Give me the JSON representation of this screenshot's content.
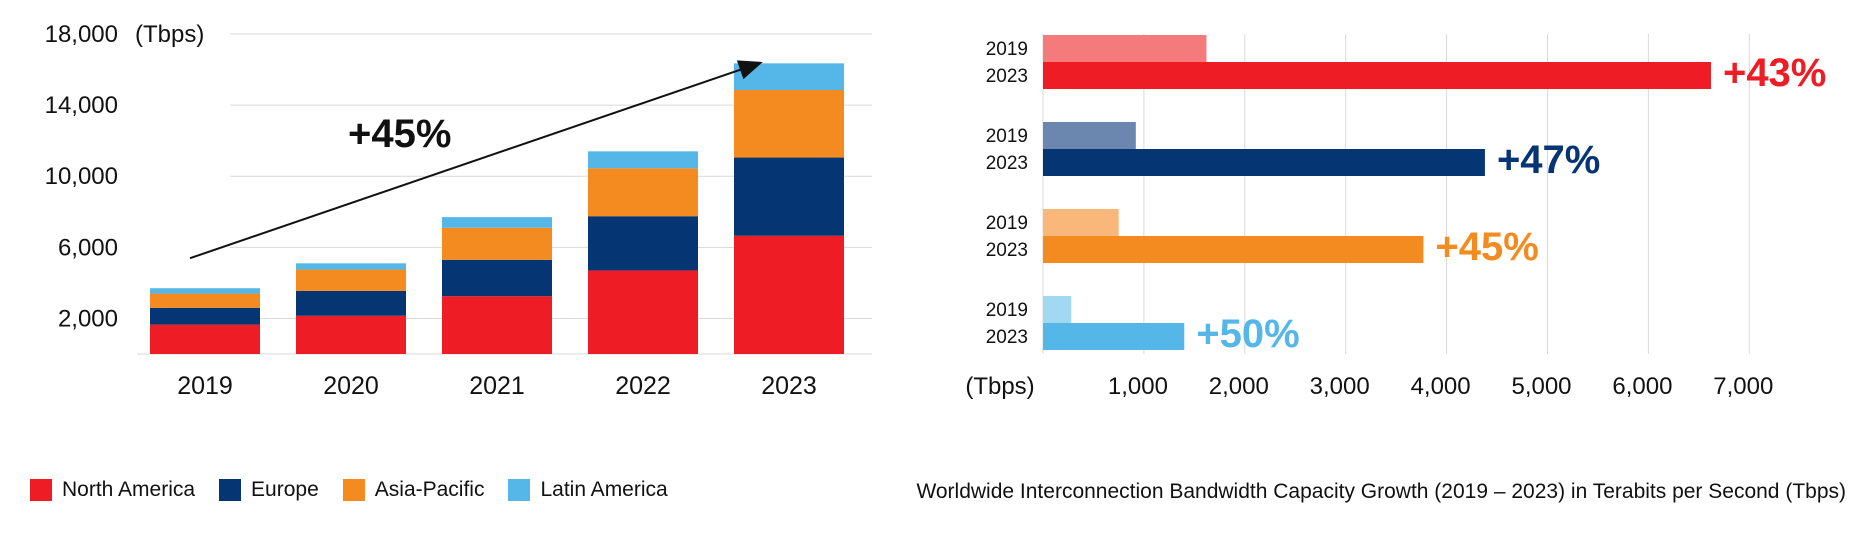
{
  "colors": {
    "north_america": "#ee1c25",
    "europe": "#053673",
    "asia_pacific": "#f48b21",
    "latin_america": "#54b7e7",
    "north_america_light": "#f47a7c",
    "europe_light": "#6b87b0",
    "asia_pacific_light": "#f9b87a",
    "latin_america_light": "#a2d8f2"
  },
  "legend": [
    {
      "label": "North America",
      "key": "north_america"
    },
    {
      "label": "Europe",
      "key": "europe"
    },
    {
      "label": "Asia-Pacific",
      "key": "asia_pacific"
    },
    {
      "label": "Latin America",
      "key": "latin_america"
    }
  ],
  "caption": "Worldwide Interconnection Bandwidth Capacity Growth (2019 – 2023) in Terabits per Second (Tbps)",
  "chart_data": [
    {
      "type": "bar",
      "stacked": true,
      "unit_label": "(Tbps)",
      "categories": [
        "2019",
        "2020",
        "2021",
        "2022",
        "2023"
      ],
      "y_ticks": [
        2000,
        6000,
        10000,
        14000,
        18000
      ],
      "y_tick_labels": [
        "2,000",
        "6,000",
        "10,000",
        "14,000",
        "18,000"
      ],
      "ylim": [
        0,
        18000
      ],
      "grid": true,
      "series": [
        {
          "name": "North America",
          "key": "north_america",
          "values": [
            1650,
            2150,
            3250,
            4700,
            6650
          ]
        },
        {
          "name": "Europe",
          "key": "europe",
          "values": [
            950,
            1400,
            2050,
            3050,
            4400
          ]
        },
        {
          "name": "Asia-Pacific",
          "key": "asia_pacific",
          "values": [
            800,
            1200,
            1800,
            2700,
            3800
          ]
        },
        {
          "name": "Latin America",
          "key": "latin_america",
          "values": [
            300,
            350,
            600,
            950,
            1500
          ]
        }
      ],
      "annotation": {
        "text": "+45%",
        "arrow_from": "2019",
        "arrow_to": "2023"
      }
    },
    {
      "type": "bar",
      "orientation": "horizontal",
      "unit_label": "(Tbps)",
      "x_ticks": [
        1000,
        2000,
        3000,
        4000,
        5000,
        6000,
        7000
      ],
      "x_tick_labels": [
        "1,000",
        "2,000",
        "3,000",
        "4,000",
        "5,000",
        "6,000",
        "7,000"
      ],
      "xlim": [
        0,
        7500
      ],
      "grid": true,
      "groups": [
        {
          "region": "North America",
          "key": "north_america",
          "labels": [
            "2019",
            "2023"
          ],
          "values": [
            1620,
            6620
          ],
          "growth": "+43%"
        },
        {
          "region": "Europe",
          "key": "europe",
          "labels": [
            "2019",
            "2023"
          ],
          "values": [
            920,
            4380
          ],
          "growth": "+47%"
        },
        {
          "region": "Asia-Pacific",
          "key": "asia_pacific",
          "labels": [
            "2019",
            "2023"
          ],
          "values": [
            750,
            3770
          ],
          "growth": "+45%"
        },
        {
          "region": "Latin America",
          "key": "latin_america",
          "labels": [
            "2019",
            "2023"
          ],
          "values": [
            280,
            1400
          ],
          "growth": "+50%"
        }
      ]
    }
  ]
}
